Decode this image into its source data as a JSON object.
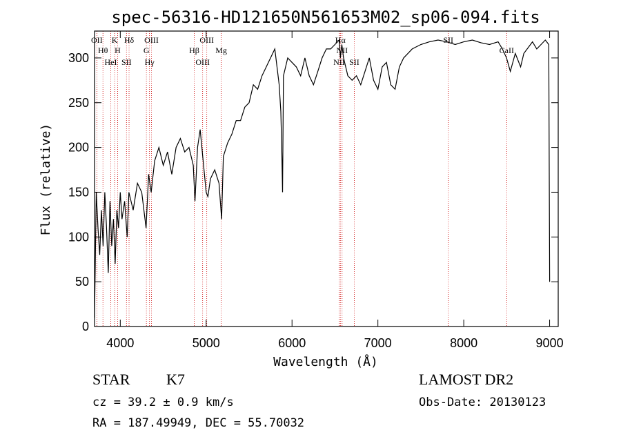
{
  "chart_data": {
    "type": "line",
    "title": "spec-56316-HD121650N561653M02_sp06-094.fits",
    "xlabel": "Wavelength (Å)",
    "ylabel": "Flux (relative)",
    "xlim": [
      3700,
      9100
    ],
    "ylim": [
      0,
      330
    ],
    "xticks": [
      4000,
      5000,
      6000,
      7000,
      8000,
      9000
    ],
    "yticks": [
      0,
      50,
      100,
      150,
      200,
      250,
      300
    ],
    "grid": false,
    "series": [
      {
        "x": [
          3700,
          3720,
          3740,
          3760,
          3780,
          3800,
          3820,
          3840,
          3860,
          3880,
          3900,
          3920,
          3940,
          3960,
          3980,
          4000,
          4020,
          4050,
          4080,
          4100,
          4150,
          4200,
          4250,
          4300,
          4330,
          4360,
          4400,
          4450,
          4500,
          4550,
          4600,
          4650,
          4700,
          4750,
          4800,
          4850,
          4870,
          4900,
          4930,
          4960,
          5000,
          5020,
          5050,
          5100,
          5150,
          5180,
          5200,
          5250,
          5300,
          5350,
          5400,
          5450,
          5500,
          5550,
          5600,
          5650,
          5700,
          5750,
          5800,
          5850,
          5870,
          5880,
          5890,
          5900,
          5950,
          6000,
          6050,
          6100,
          6150,
          6200,
          6250,
          6300,
          6350,
          6400,
          6450,
          6500,
          6550,
          6563,
          6580,
          6600,
          6650,
          6700,
          6750,
          6800,
          6850,
          6900,
          6950,
          7000,
          7050,
          7100,
          7150,
          7200,
          7250,
          7300,
          7350,
          7400,
          7500,
          7600,
          7700,
          7800,
          7900,
          8000,
          8100,
          8200,
          8300,
          8400,
          8450,
          8498,
          8542,
          8600,
          8662,
          8700,
          8800,
          8850,
          8900,
          8950,
          8990,
          9000
        ],
        "y": [
          10,
          150,
          110,
          80,
          130,
          90,
          150,
          110,
          60,
          140,
          90,
          120,
          70,
          130,
          110,
          150,
          120,
          140,
          100,
          150,
          130,
          160,
          150,
          110,
          170,
          150,
          185,
          200,
          180,
          195,
          170,
          200,
          210,
          195,
          200,
          180,
          140,
          200,
          220,
          190,
          150,
          145,
          165,
          175,
          160,
          120,
          190,
          205,
          215,
          230,
          230,
          245,
          250,
          270,
          265,
          280,
          290,
          300,
          310,
          270,
          240,
          200,
          150,
          280,
          300,
          295,
          290,
          280,
          300,
          280,
          270,
          285,
          300,
          310,
          310,
          315,
          320,
          300,
          315,
          300,
          280,
          275,
          280,
          270,
          285,
          300,
          275,
          265,
          290,
          295,
          270,
          265,
          290,
          300,
          305,
          310,
          315,
          318,
          320,
          318,
          315,
          318,
          320,
          317,
          315,
          318,
          310,
          300,
          285,
          305,
          290,
          305,
          318,
          310,
          315,
          320,
          315,
          50
        ]
      }
    ],
    "line_markers": [
      {
        "label": "OII",
        "wavelength": 3727
      },
      {
        "label": "Hθ",
        "wavelength": 3798
      },
      {
        "label": "HeI",
        "wavelength": 3889
      },
      {
        "label": "K",
        "wavelength": 3934
      },
      {
        "label": "H",
        "wavelength": 3969
      },
      {
        "label": "SII",
        "wavelength": 4072
      },
      {
        "label": "Hδ",
        "wavelength": 4102
      },
      {
        "label": "G",
        "wavelength": 4304
      },
      {
        "label": "Hγ",
        "wavelength": 4340
      },
      {
        "label": "OIII",
        "wavelength": 4363
      },
      {
        "label": "Hβ",
        "wavelength": 4861
      },
      {
        "label": "OIII",
        "wavelength": 4959
      },
      {
        "label": "OIII",
        "wavelength": 5007
      },
      {
        "label": "Mg",
        "wavelength": 5175
      },
      {
        "label": "NII",
        "wavelength": 6548
      },
      {
        "label": "Hα",
        "wavelength": 6563
      },
      {
        "label": "NII",
        "wavelength": 6583
      },
      {
        "label": "SII",
        "wavelength": 6725
      },
      {
        "label": "SII",
        "wavelength": 7820
      },
      {
        "label": "CaII",
        "wavelength": 8500
      }
    ]
  },
  "info": {
    "class": "STAR",
    "subclass": "K7",
    "survey": "LAMOST DR2",
    "cz": "cz = 39.2 ± 0.9 km/s",
    "obs_date": "Obs-Date: 20130123",
    "coords": "RA = 187.49949, DEC =  55.70032"
  },
  "colors": {
    "spectrum": "#000000",
    "marker_lines": "#cc0000",
    "axes": "#000000",
    "background": "#ffffff"
  }
}
